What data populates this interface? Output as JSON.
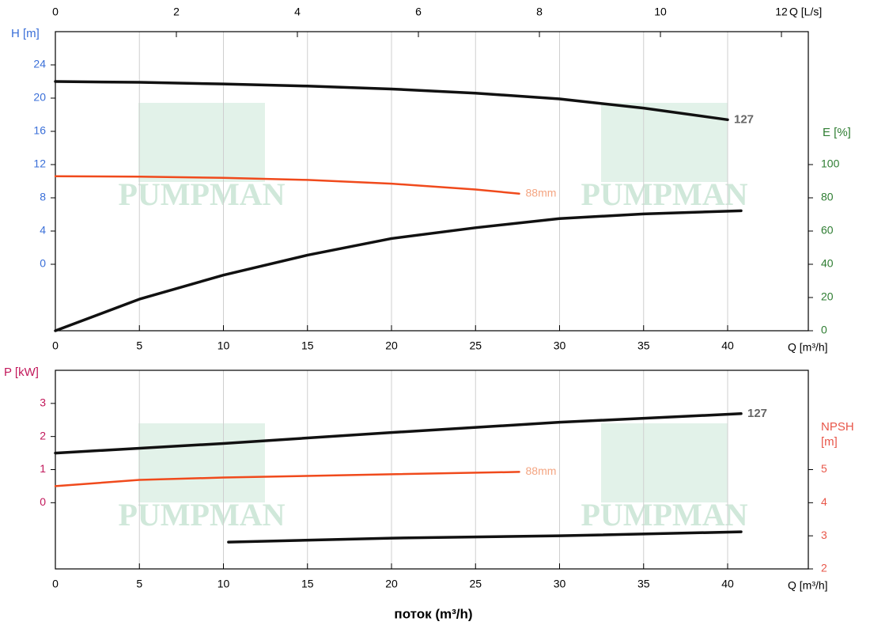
{
  "chart_data": [
    {
      "type": "line",
      "xlabel": "Q [m³/h]",
      "x2label": "Q [L/s]",
      "ylabel": "H [m]",
      "y2label": "E [%]",
      "xlim": [
        0,
        44.8
      ],
      "xticks": [
        0,
        5,
        10,
        15,
        20,
        25,
        30,
        35,
        40
      ],
      "x2lim": [
        0,
        12.444
      ],
      "x2ticks": [
        0,
        2,
        4,
        6,
        8,
        10,
        12
      ],
      "ylim": [
        -8,
        28
      ],
      "yticks": [
        0,
        4,
        8,
        12,
        16,
        20,
        24
      ],
      "ycolor": "#3a6fd8",
      "y2lim": [
        0,
        180
      ],
      "y2ticks": [
        0,
        20,
        40,
        60,
        80,
        100
      ],
      "y2color": "#2e7d32",
      "grid": true,
      "series": [
        {
          "name": "127",
          "color": "#111111",
          "x": [
            0,
            5,
            10,
            15,
            20,
            25,
            30,
            35,
            40
          ],
          "values": [
            22,
            21.9,
            21.7,
            21.45,
            21.1,
            20.6,
            19.9,
            18.8,
            17.4
          ]
        },
        {
          "name": "88mm",
          "color": "#f04a1c",
          "x": [
            0,
            5,
            10,
            15,
            20,
            25,
            27.6
          ],
          "values": [
            10.6,
            10.55,
            10.4,
            10.15,
            9.7,
            9.0,
            8.5
          ]
        },
        {
          "color": "#111111",
          "axis": "y2",
          "x": [
            0,
            5,
            10,
            15,
            20,
            25,
            30,
            35,
            40.8
          ],
          "values": [
            0,
            19,
            33.5,
            45.5,
            55.5,
            62,
            67.5,
            70.3,
            72.2
          ]
        }
      ]
    },
    {
      "type": "line",
      "xlabel": "Q [m³/h]",
      "ylabel": "P [kW]",
      "y2label": "NPSH [m]",
      "xlim": [
        0,
        44.8
      ],
      "xticks": [
        0,
        5,
        10,
        15,
        20,
        25,
        30,
        35,
        40
      ],
      "ylim": [
        -2,
        4
      ],
      "yticks": [
        0,
        1,
        2,
        3
      ],
      "ycolor": "#c2185b",
      "y2lim": [
        2,
        8
      ],
      "y2ticks": [
        2,
        3,
        4,
        5
      ],
      "y2color": "#e8574a",
      "grid": true,
      "series": [
        {
          "name": "127",
          "color": "#111111",
          "x": [
            0,
            10,
            20,
            30,
            40.8
          ],
          "values": [
            1.5,
            1.79,
            2.12,
            2.43,
            2.69
          ]
        },
        {
          "name": "88mm",
          "color": "#f04a1c",
          "x": [
            0,
            5,
            10,
            20,
            27.6
          ],
          "values": [
            0.5,
            0.69,
            0.76,
            0.86,
            0.93
          ]
        },
        {
          "color": "#111111",
          "axis": "y2",
          "x": [
            10.3,
            20,
            30,
            40.8
          ],
          "values": [
            2.81,
            2.93,
            3.0,
            3.12
          ]
        }
      ]
    }
  ],
  "caption": "поток (m³/h)",
  "watermark": "PUMPMAN"
}
